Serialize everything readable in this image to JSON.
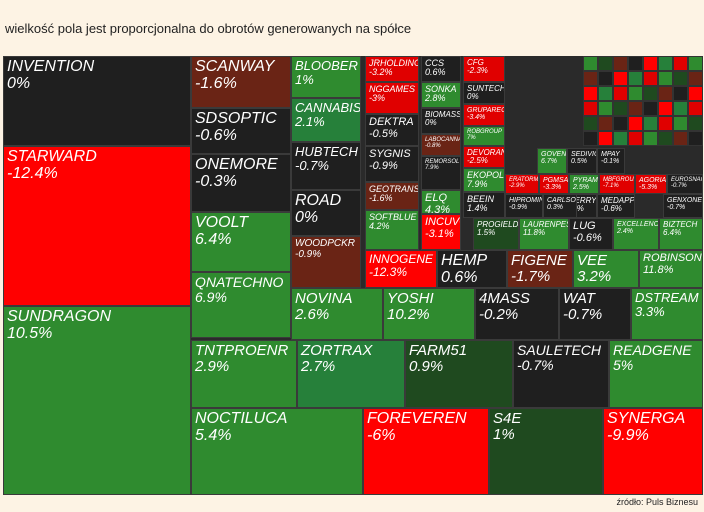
{
  "title": "wielkość pola jest proporcjonalna do obrotów generowanych na spółce",
  "source": "źródło: Puls Biznesu",
  "colors": {
    "strong_green": "#2f8b2f",
    "green": "#26803a",
    "dark_green": "#1f4a1f",
    "neutral": "#1f1f1f",
    "dark_red": "#6a2415",
    "red": "#e00000",
    "bright_red": "#ff0000"
  },
  "chart_data": {
    "type": "treemap",
    "tiles": [
      {
        "name": "INVENTION",
        "change": "0%"
      },
      {
        "name": "STARWARD",
        "change": "-12.4%"
      },
      {
        "name": "SUNDRAGON",
        "change": "10.5%"
      },
      {
        "name": "SCANWAY",
        "change": "-1.6%"
      },
      {
        "name": "SDSOPTIC",
        "change": "-0.6%"
      },
      {
        "name": "ONEMORE",
        "change": "-0.3%"
      },
      {
        "name": "VOOLT",
        "change": "6.4%"
      },
      {
        "name": "QNATECHNO",
        "change": "6.9%"
      },
      {
        "name": "NOVINA",
        "change": "2.6%"
      },
      {
        "name": "YOSHI",
        "change": "10.2%"
      },
      {
        "name": "4MASS",
        "change": "-0.2%"
      },
      {
        "name": "WAT",
        "change": "-0.7%"
      },
      {
        "name": "DSTREAM",
        "change": "3.3%"
      },
      {
        "name": "TNTPROENR",
        "change": "2.9%"
      },
      {
        "name": "ZORTRAX",
        "change": "2.7%"
      },
      {
        "name": "FARM51",
        "change": "0.9%"
      },
      {
        "name": "SAULETECH",
        "change": "-0.7%"
      },
      {
        "name": "READGENE",
        "change": "5%"
      },
      {
        "name": "NOCTILUCA",
        "change": "5.4%"
      },
      {
        "name": "FOREVEREN",
        "change": "-6%"
      },
      {
        "name": "S4E",
        "change": "1%"
      },
      {
        "name": "SYNERGA",
        "change": "-9.9%"
      },
      {
        "name": "BLOOBER",
        "change": "1%"
      },
      {
        "name": "CANNABIS",
        "change": "2.1%"
      },
      {
        "name": "HUBTECH",
        "change": "-0.7%"
      },
      {
        "name": "ROAD",
        "change": "0%"
      },
      {
        "name": "WOODPCKR",
        "change": "-0.9%"
      },
      {
        "name": "JRHOLDING",
        "change": "-3.2%"
      },
      {
        "name": "NGGAMES",
        "change": "-3%"
      },
      {
        "name": "DEKTRA",
        "change": "-0.5%"
      },
      {
        "name": "SYGNIS",
        "change": "-0.9%"
      },
      {
        "name": "GEOTRANS",
        "change": "-1.6%"
      },
      {
        "name": "SOFTBLUE",
        "change": "4.2%"
      },
      {
        "name": "INNOGENE",
        "change": "-12.3%"
      },
      {
        "name": "CCS",
        "change": "0.6%"
      },
      {
        "name": "SONKA",
        "change": "2.8%"
      },
      {
        "name": "BIOMASS",
        "change": "0%"
      },
      {
        "name": "LABOCANNA",
        "change": "-0.8%"
      },
      {
        "name": "REMORSOL",
        "change": "7.9%"
      },
      {
        "name": "ELQ",
        "change": "4.3%"
      },
      {
        "name": "INCUVO",
        "change": "-3.1%"
      },
      {
        "name": "HEMP",
        "change": "0.6%"
      },
      {
        "name": "CFG",
        "change": "-2.3%"
      },
      {
        "name": "SUNTECH",
        "change": "0%"
      },
      {
        "name": "GRUPAREC",
        "change": "-3.4%"
      },
      {
        "name": "ROBGROUP",
        "change": "7%"
      },
      {
        "name": "DEVORAN",
        "change": "-2.5%"
      },
      {
        "name": "EKOPOL",
        "change": "7.9%"
      },
      {
        "name": "BEEIN",
        "change": "1.4%"
      },
      {
        "name": "PROGIELDA",
        "change": "1.5%"
      },
      {
        "name": "LAURENPES",
        "change": "11.8%"
      },
      {
        "name": "FIGENE",
        "change": "-1.7%"
      },
      {
        "name": "VEE",
        "change": "3.2%"
      },
      {
        "name": "LUG",
        "change": "-0.6%"
      },
      {
        "name": "EXCELLENC",
        "change": "2.4%"
      },
      {
        "name": "BIZTECH",
        "change": "6.4%"
      },
      {
        "name": "ROBINSON",
        "change": "11.8%"
      },
      {
        "name": "GOVENA",
        "change": "6.7%"
      },
      {
        "name": "SEDIVIO",
        "change": "0.5%"
      },
      {
        "name": "MPAY",
        "change": "-0.1%"
      },
      {
        "name": "PGMSA",
        "change": "-3.3%"
      },
      {
        "name": "PYRAMID",
        "change": "2.5%"
      },
      {
        "name": "CHERRY",
        "change": "-1.6%"
      },
      {
        "name": "AGORIA",
        "change": "-5.3%"
      },
      {
        "name": "HIPROMINE",
        "change": "-0.9%"
      },
      {
        "name": "CARLSON",
        "change": "0.3%"
      },
      {
        "name": "MEDAPP",
        "change": "-0.6%"
      },
      {
        "name": "GENXONE",
        "change": "-0.7%"
      },
      {
        "name": "ERATORMU",
        "change": "-2.9%"
      },
      {
        "name": "MBFGROUP",
        "change": "-7.1%"
      },
      {
        "name": "EUROSNACK",
        "change": "-0.7%"
      }
    ]
  }
}
